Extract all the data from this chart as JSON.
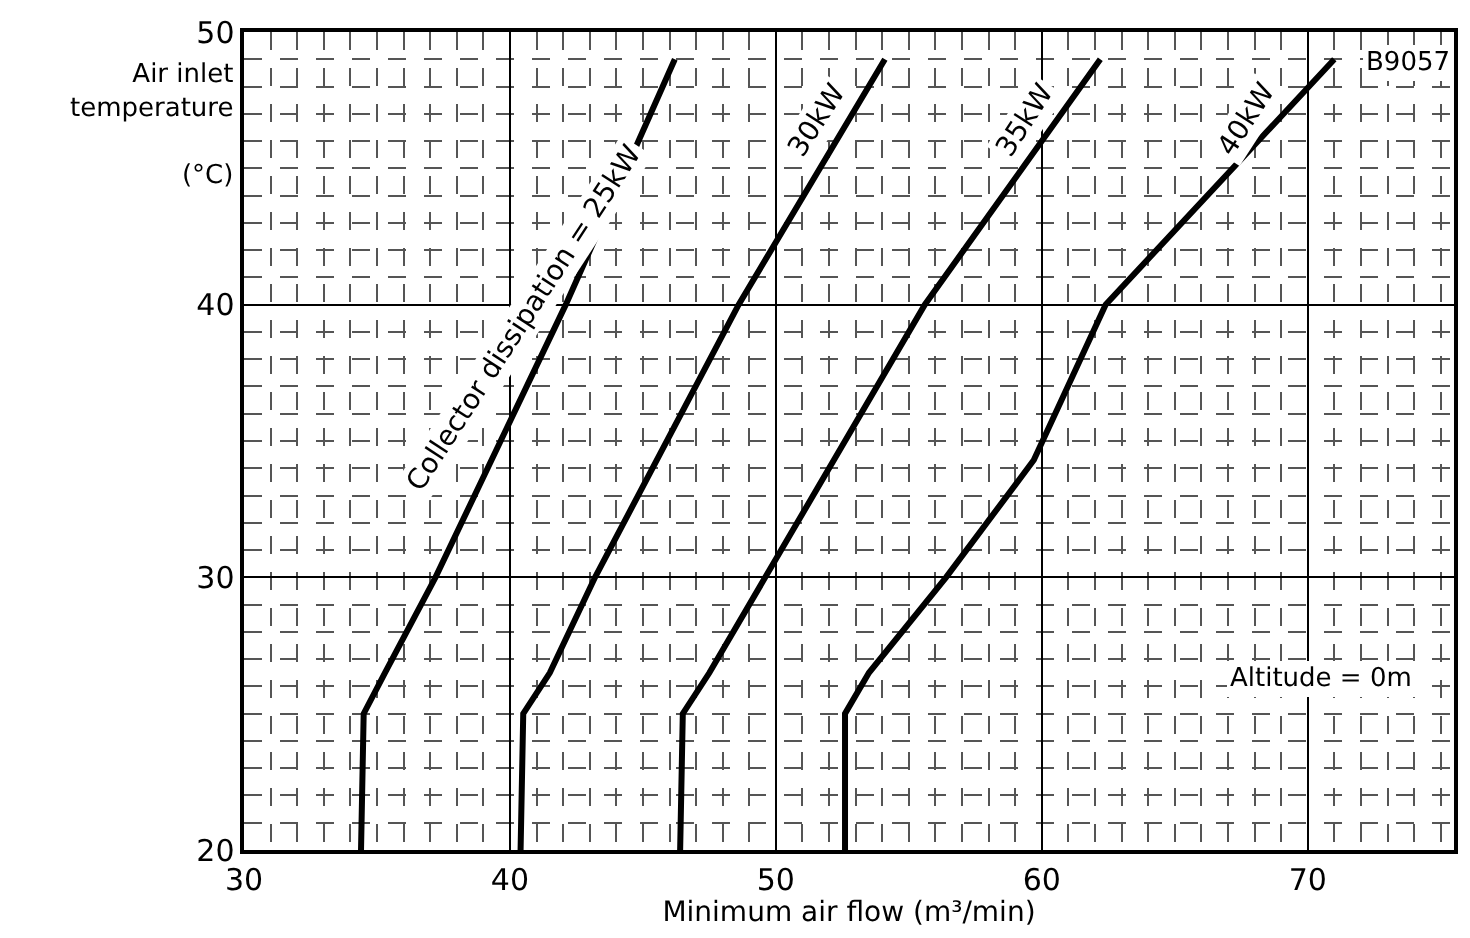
{
  "chart_data": {
    "type": "line",
    "xlabel": "Minimum air flow (m³/min)",
    "ylabel": "Air inlet\ntemperature\n\n(°C)",
    "xlim": [
      30,
      75.5
    ],
    "ylim": [
      20,
      50
    ],
    "xticks": [
      30,
      40,
      50,
      60,
      70
    ],
    "yticks": [
      20,
      30,
      40,
      50
    ],
    "grid": true,
    "legend": false,
    "marker": "none",
    "line_style": "solid",
    "series": [
      {
        "name": "Collector dissipation = 25kW",
        "color": "#000000",
        "x": [
          34.4,
          34.5,
          35.3,
          37.2,
          42.1,
          46.2
        ],
        "values": [
          20,
          25,
          26.5,
          30,
          40,
          49
        ]
      },
      {
        "name": "30kW",
        "color": "#000000",
        "x": [
          40.4,
          40.5,
          41.5,
          43.2,
          48.6,
          54.1
        ],
        "values": [
          20,
          25,
          26.5,
          30,
          40,
          49
        ]
      },
      {
        "name": "35kW",
        "color": "#000000",
        "x": [
          46.4,
          46.5,
          47.5,
          49.6,
          55.6,
          62.2
        ],
        "values": [
          20,
          25,
          26.5,
          30,
          40,
          49
        ]
      },
      {
        "name": "40kW",
        "color": "#000000",
        "x": [
          52.6,
          52.6,
          53.5,
          56.4,
          59.7,
          62.4,
          71.0
        ],
        "values": [
          20,
          25,
          26.5,
          30,
          34.3,
          40,
          49
        ]
      }
    ],
    "annotations": [
      "Altitude = 0m",
      "B9057"
    ]
  }
}
